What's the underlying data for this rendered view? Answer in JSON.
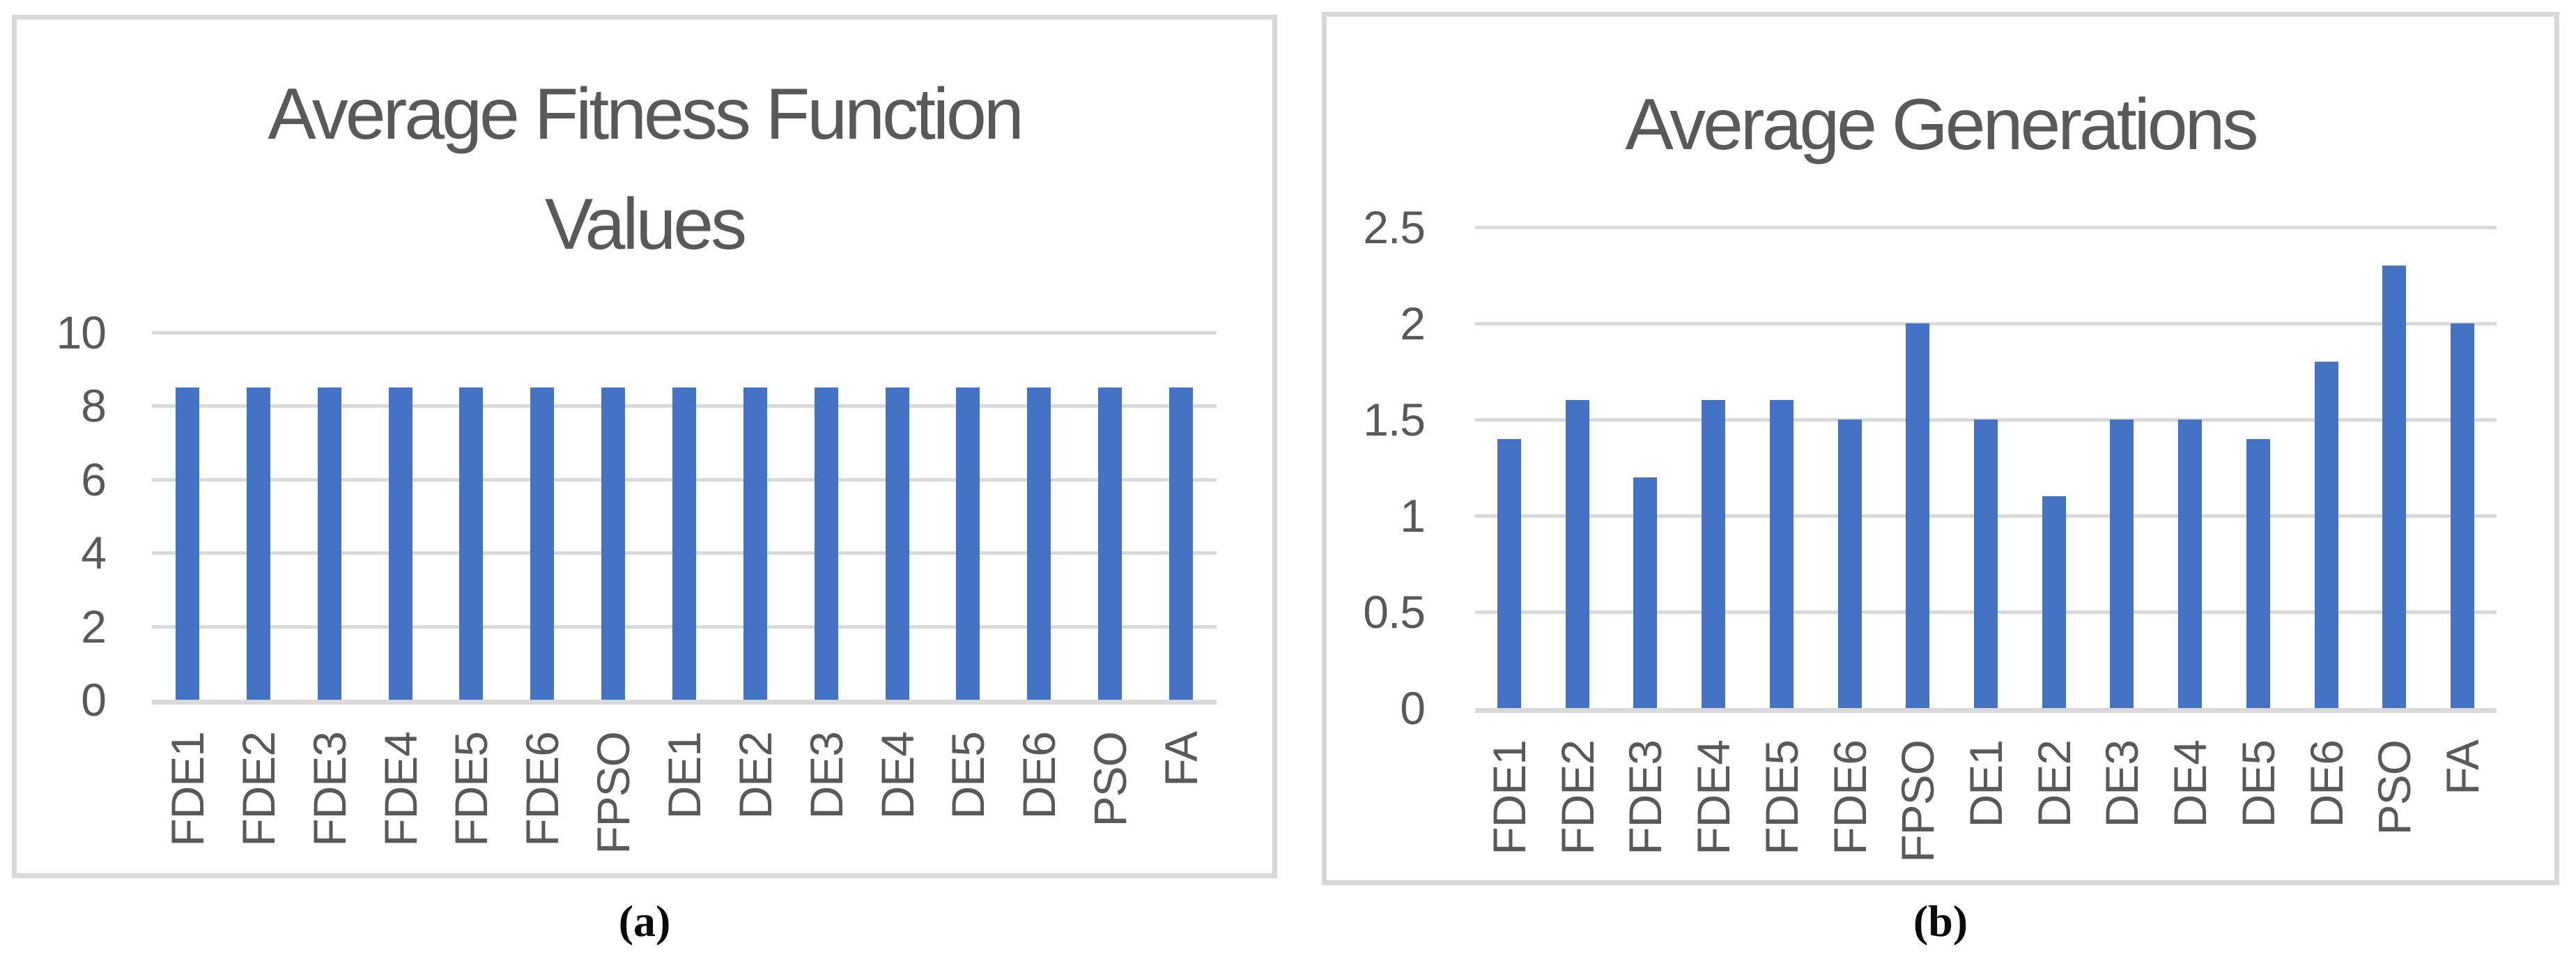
{
  "figure": {
    "captions": {
      "a": "(a)",
      "b": "(b)"
    }
  },
  "colors": {
    "bar": "#4472C4",
    "gridline": "#D9D9D9",
    "panel_border": "#D9D9D9",
    "chart_text": "#595959",
    "caption_text": "#0a0a0a",
    "background": "#ffffff"
  },
  "chart_data": [
    {
      "id": "a",
      "type": "bar",
      "title": "Average Fitness Function Values",
      "title_lines": [
        "Average Fitness Function",
        "Values"
      ],
      "categories": [
        "FDE1",
        "FDE2",
        "FDE3",
        "FDE4",
        "FDE5",
        "FDE6",
        "FPSO",
        "DE1",
        "DE2",
        "DE3",
        "DE4",
        "DE5",
        "DE6",
        "PSO",
        "FA"
      ],
      "values": [
        8.5,
        8.5,
        8.5,
        8.5,
        8.5,
        8.5,
        8.5,
        8.5,
        8.5,
        8.5,
        8.5,
        8.5,
        8.5,
        8.5,
        8.5
      ],
      "xlabel": "",
      "ylabel": "",
      "ylim": [
        0,
        10
      ],
      "yticks": [
        0,
        2,
        4,
        6,
        8,
        10
      ],
      "grid": true,
      "legend": "none"
    },
    {
      "id": "b",
      "type": "bar",
      "title": "Average Generations",
      "title_lines": [
        "Average Generations"
      ],
      "categories": [
        "FDE1",
        "FDE2",
        "FDE3",
        "FDE4",
        "FDE5",
        "FDE6",
        "FPSO",
        "DE1",
        "DE2",
        "DE3",
        "DE4",
        "DE5",
        "DE6",
        "PSO",
        "FA"
      ],
      "values": [
        1.4,
        1.6,
        1.2,
        1.6,
        1.6,
        1.5,
        2.0,
        1.5,
        1.1,
        1.5,
        1.5,
        1.4,
        1.8,
        2.3,
        2.0
      ],
      "xlabel": "",
      "ylabel": "",
      "ylim": [
        0,
        2.5
      ],
      "yticks": [
        0,
        0.5,
        1,
        1.5,
        2,
        2.5
      ],
      "grid": true,
      "legend": "none"
    }
  ]
}
